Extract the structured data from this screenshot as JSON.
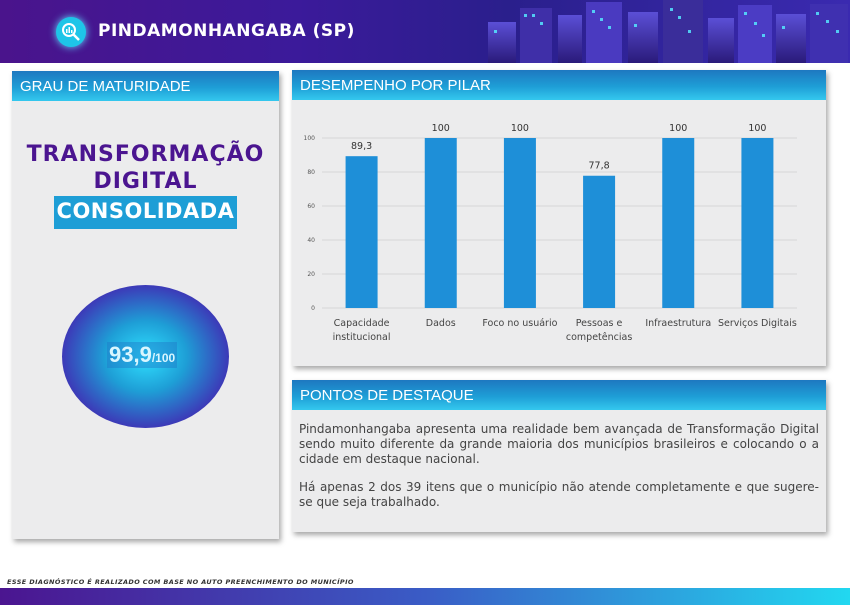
{
  "header": {
    "title": "PINDAMONHANGABA (SP)",
    "logo_icon": "data-magnifier-icon",
    "colors": {
      "primary": "#4a148c",
      "accent": "#1e9ed6"
    }
  },
  "maturity": {
    "section_title": "GRAU DE MATURIDADE",
    "line1": "TRANSFORMAÇÃO",
    "line2": "DIGITAL",
    "level": "CONSOLIDADA",
    "score": "93,9",
    "score_suffix": "/100"
  },
  "pillar": {
    "section_title": "DESEMPENHO POR PILAR"
  },
  "chart_data": {
    "type": "bar",
    "categories": [
      [
        "Capacidade",
        "institucional"
      ],
      [
        "Dados"
      ],
      [
        "Foco no usuário"
      ],
      [
        "Pessoas e",
        "competências"
      ],
      [
        "Infraestrutura"
      ],
      [
        "Serviços Digitais"
      ]
    ],
    "values": [
      89.3,
      100,
      100,
      77.8,
      100,
      100
    ],
    "value_labels": [
      "89,3",
      "100",
      "100",
      "77,8",
      "100",
      "100"
    ],
    "yticks": [
      "0",
      "20",
      "40",
      "60",
      "80",
      "100"
    ],
    "ylim": [
      0,
      100
    ],
    "grid": true,
    "color": "#1e8fd8"
  },
  "highlights": {
    "section_title": "PONTOS DE DESTAQUE",
    "paragraph1": "Pindamonhangaba apresenta uma realidade bem avançada de Transformação Digital sendo muito diferente da grande maioria dos municípios brasileiros e colocando o a cidade em destaque nacional.",
    "paragraph2": "Há apenas 2 dos 39 itens que o município não atende completamente e que sugere-se que seja trabalhado."
  },
  "footer": {
    "note": "ESSE DIAGNÓSTICO É REALIZADO COM BASE NO AUTO PREENCHIMENTO DO MUNICÍPIO"
  }
}
